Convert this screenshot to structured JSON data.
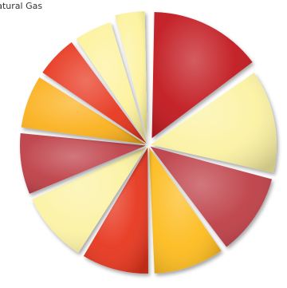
{
  "chart_data": {
    "type": "pie",
    "title": "Natural Gas",
    "values": [
      15.7,
      14.5,
      11.6,
      10.1,
      9.6,
      10.1,
      8.8,
      7.7,
      6.2,
      5.7,
      4.6
    ],
    "colors": [
      "#c1121d",
      "#fbf2a2",
      "#bd3c44",
      "#fdbb1b",
      "#e7361e",
      "#fbf2a2",
      "#bd3c44",
      "#fbb01d",
      "#e7361e",
      "#fdf29c",
      "#fdf29c"
    ],
    "exploded": [
      1,
      0,
      0,
      0,
      0,
      0,
      0,
      0,
      0,
      0,
      1
    ],
    "legend": "none"
  }
}
